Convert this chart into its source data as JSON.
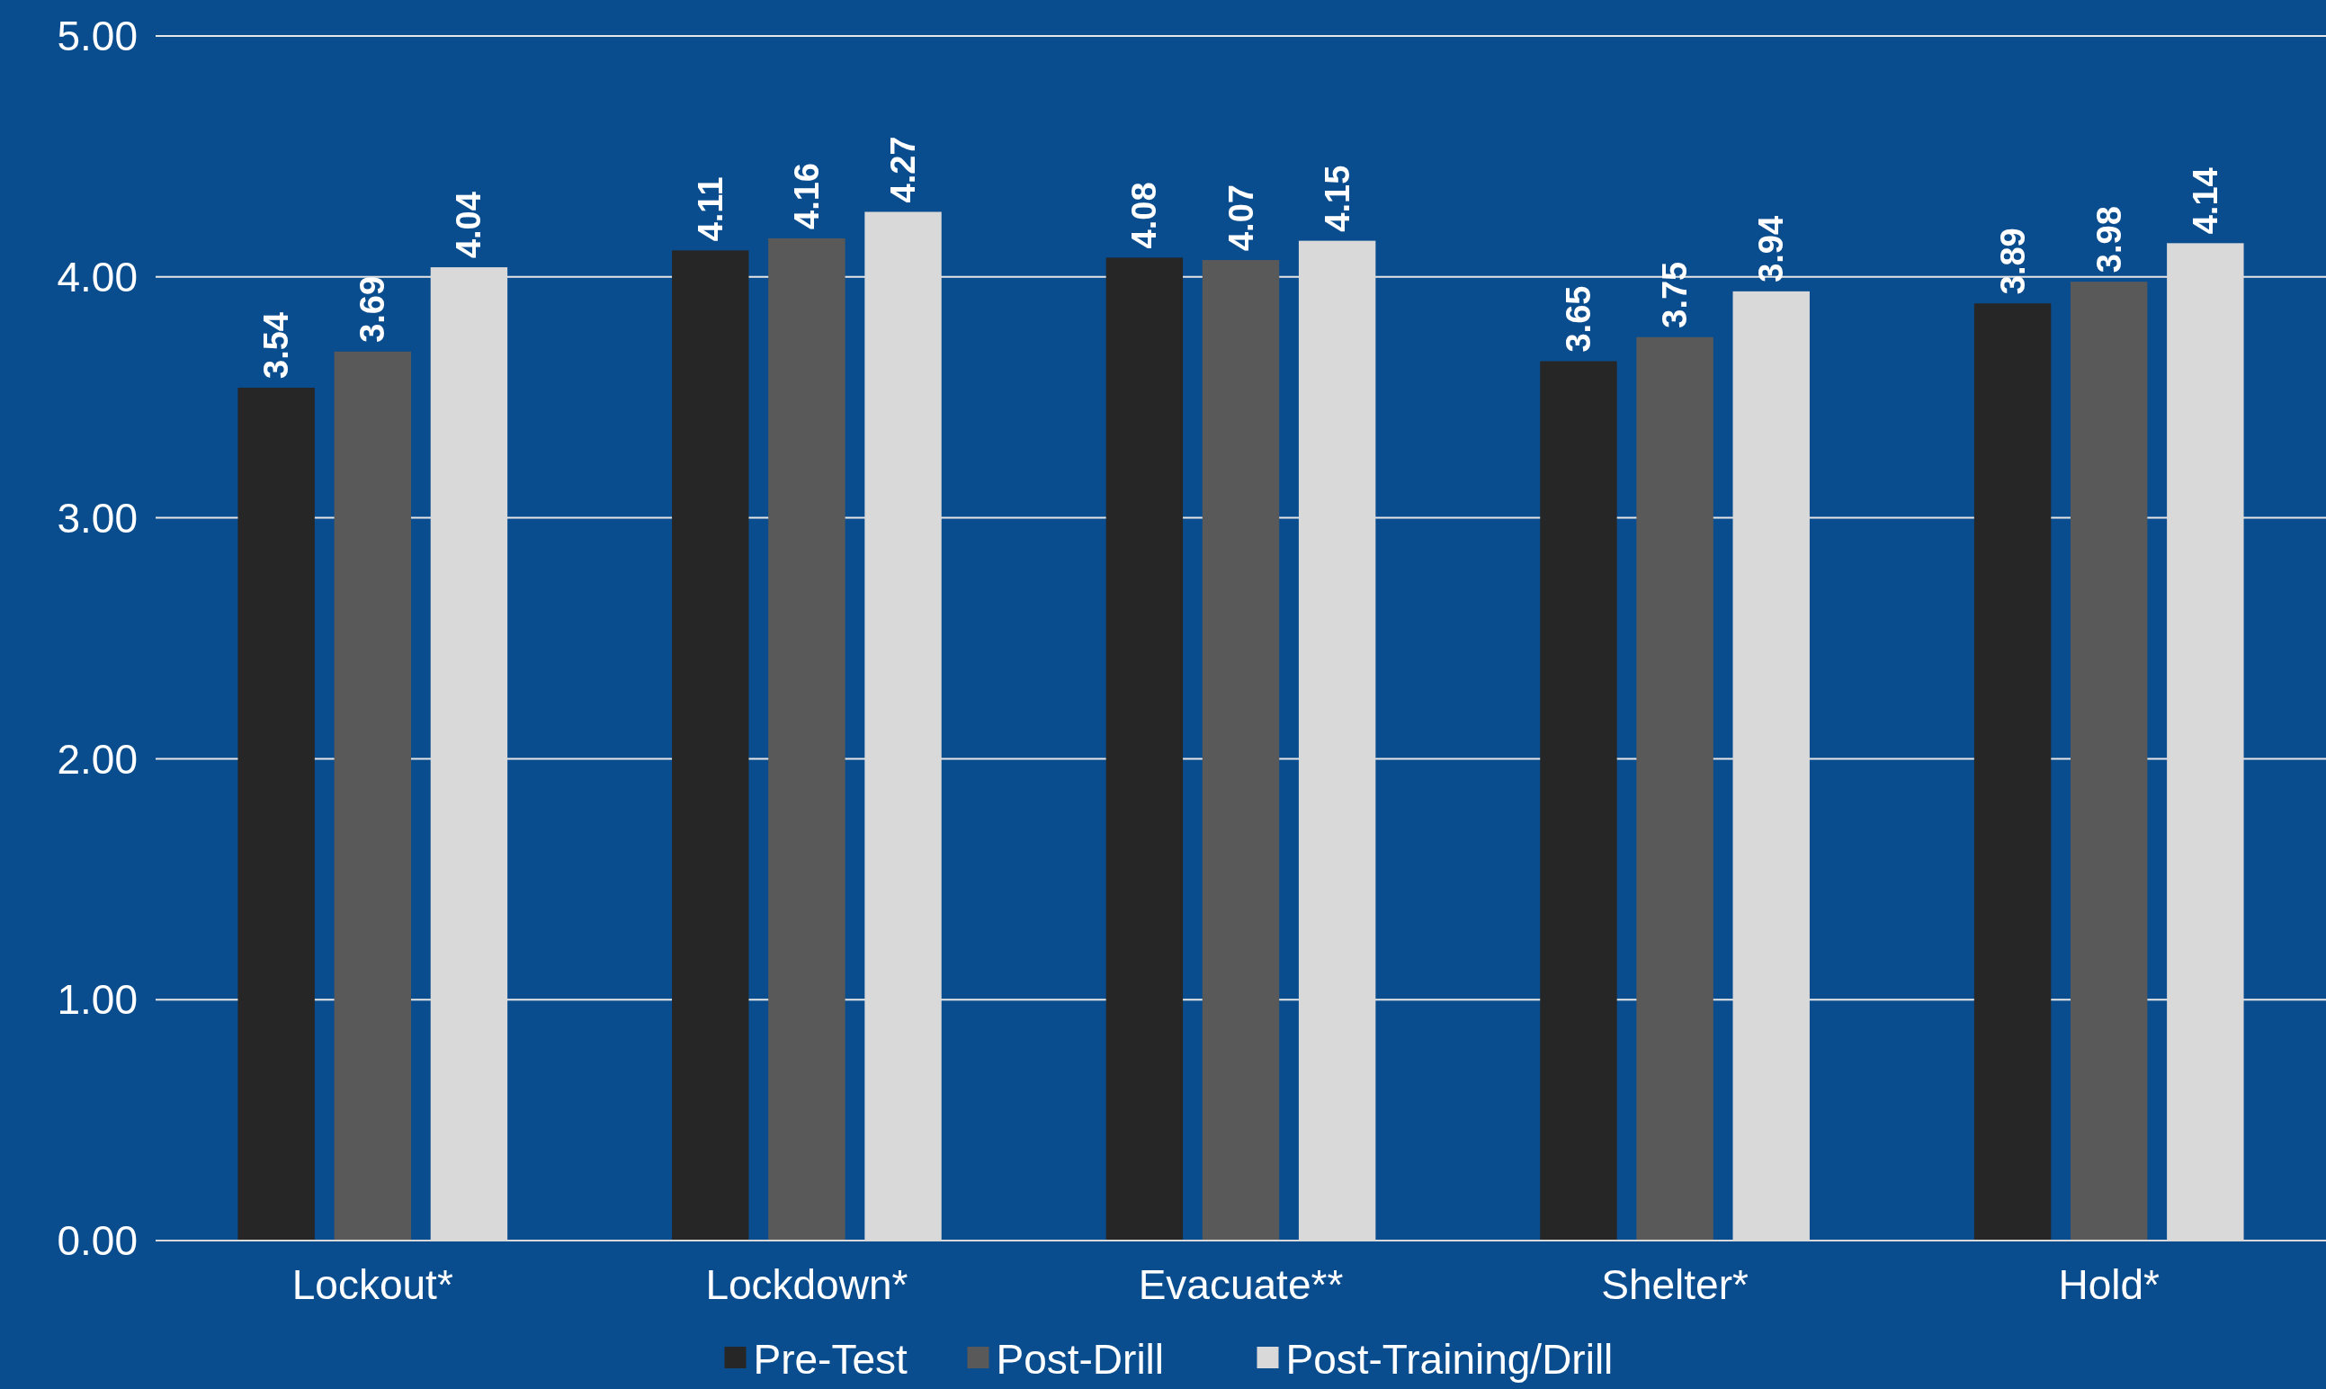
{
  "chart_data": {
    "type": "bar",
    "categories": [
      "Lockout*",
      "Lockdown*",
      "Evacuate**",
      "Shelter*",
      "Hold*"
    ],
    "series": [
      {
        "name": "Pre-Test",
        "color": "#262626",
        "values": [
          3.54,
          4.11,
          4.08,
          3.65,
          3.89
        ]
      },
      {
        "name": "Post-Drill",
        "color": "#595959",
        "values": [
          3.69,
          4.16,
          4.07,
          3.75,
          3.98
        ]
      },
      {
        "name": "Post-Training/Drill",
        "color": "#d9d9d9",
        "values": [
          4.04,
          4.27,
          4.15,
          3.94,
          4.14
        ]
      }
    ],
    "ylim": [
      0,
      5
    ],
    "yticks": [
      {
        "value": 0,
        "label": "0.00"
      },
      {
        "value": 1,
        "label": "1.00"
      },
      {
        "value": 2,
        "label": "2.00"
      },
      {
        "value": 3,
        "label": "3.00"
      },
      {
        "value": 4,
        "label": "4.00"
      },
      {
        "value": 5,
        "label": "5.00"
      }
    ],
    "grid": "y",
    "legend": "bottom",
    "data_labels": true
  }
}
